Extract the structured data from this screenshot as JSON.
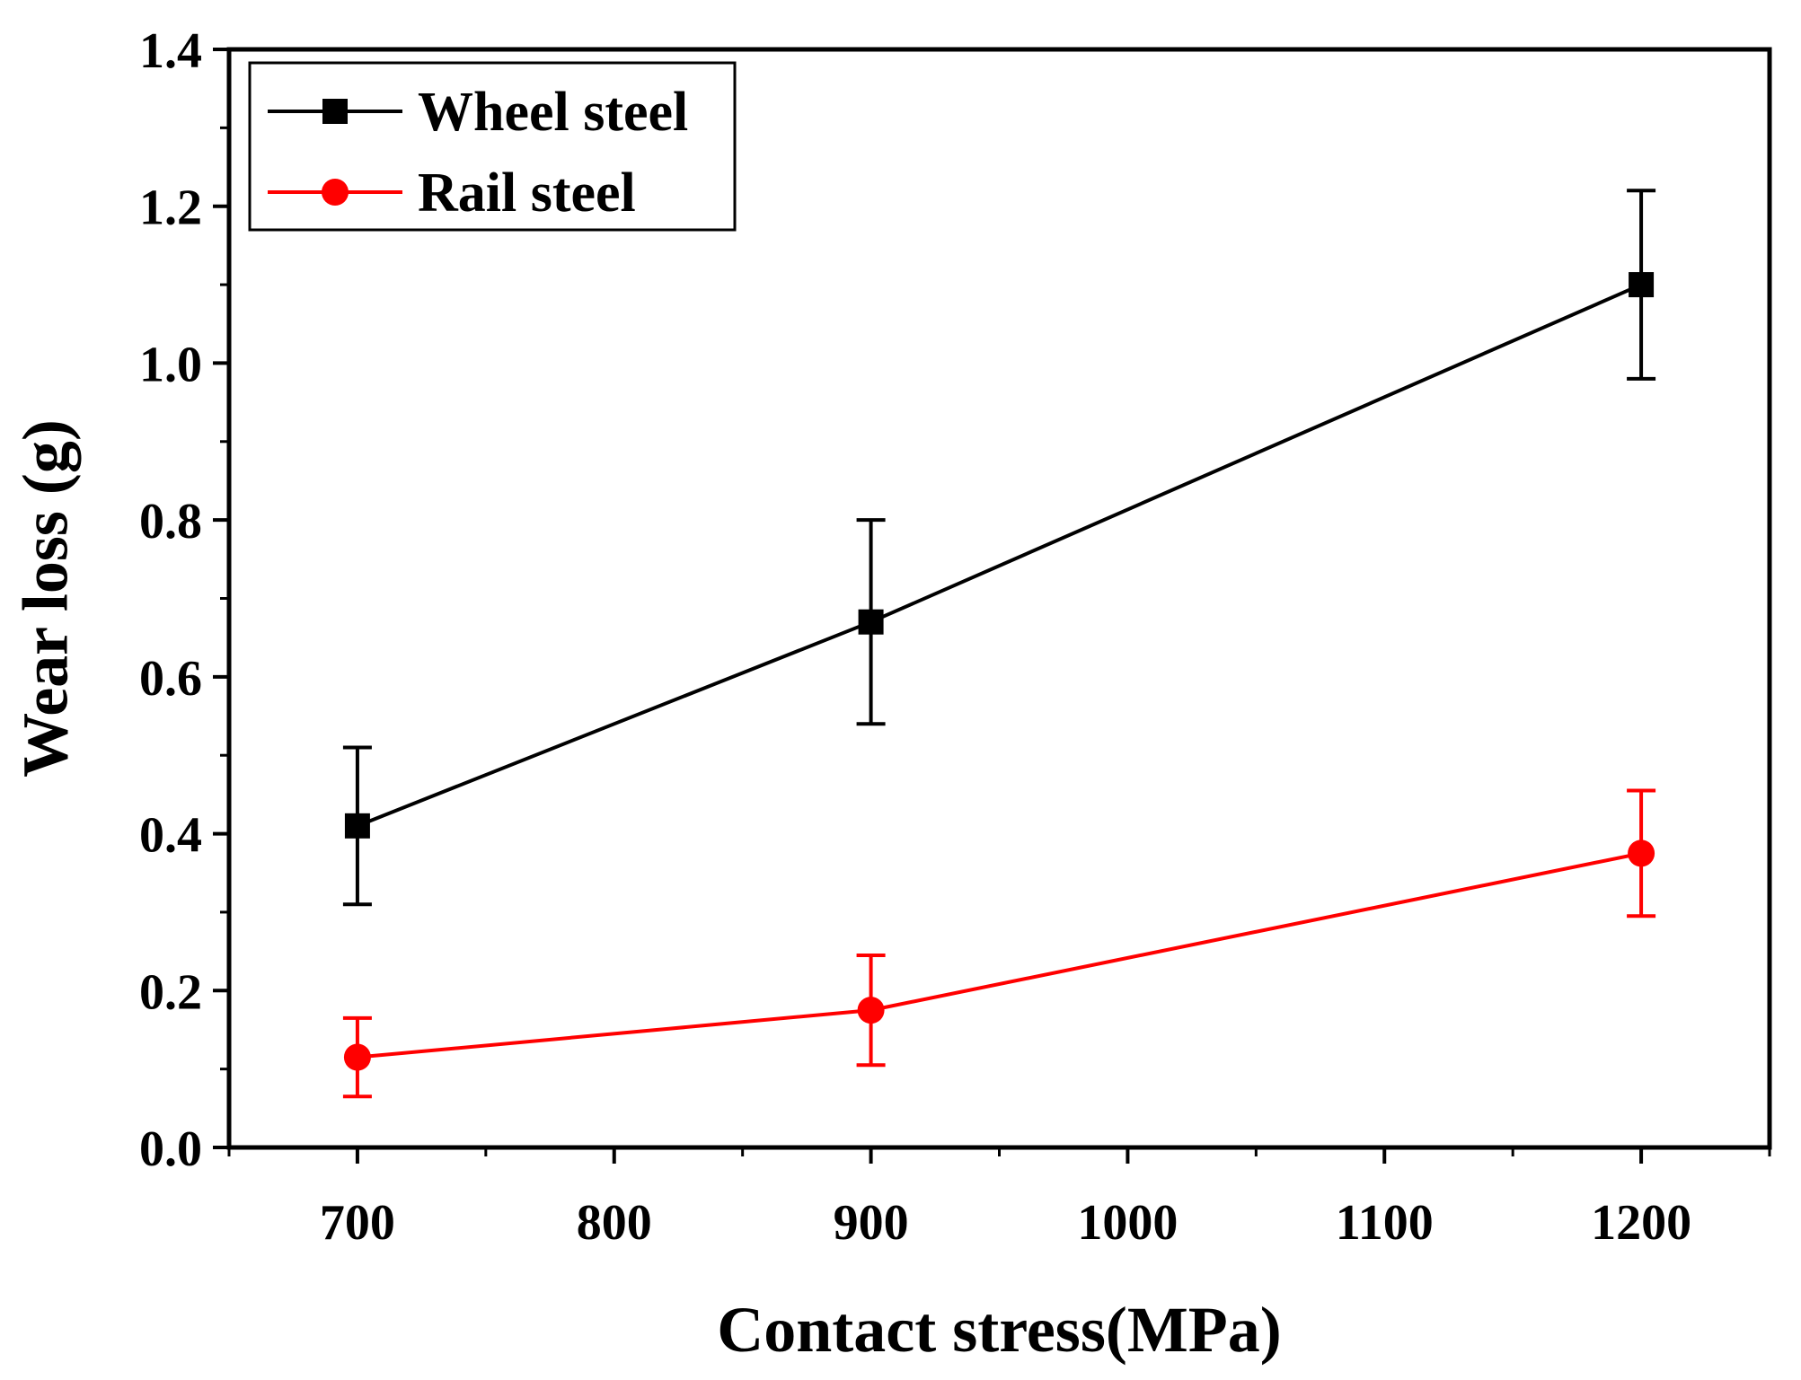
{
  "chart_data": {
    "type": "line",
    "title": "",
    "xlabel": "Contact stress(MPa)",
    "ylabel": "Wear loss (g)",
    "xlim": [
      650,
      1250
    ],
    "ylim": [
      0.0,
      1.4
    ],
    "x_ticks": [
      700,
      800,
      900,
      1000,
      1100,
      1200
    ],
    "x_tick_labels": [
      "700",
      "800",
      "900",
      "1000",
      "1100",
      "1200"
    ],
    "y_ticks": [
      0.0,
      0.2,
      0.4,
      0.6,
      0.8,
      1.0,
      1.2,
      1.4
    ],
    "y_tick_labels": [
      "0.0",
      "0.2",
      "0.4",
      "0.6",
      "0.8",
      "1.0",
      "1.2",
      "1.4"
    ],
    "grid": false,
    "legend_position": "top-left",
    "series": [
      {
        "name": "Wheel steel",
        "color": "#000000",
        "marker": "square",
        "x": [
          700,
          900,
          1200
        ],
        "y": [
          0.41,
          0.67,
          1.1
        ],
        "error": [
          0.1,
          0.13,
          0.12
        ]
      },
      {
        "name": "Rail steel",
        "color": "#ff0000",
        "marker": "circle",
        "x": [
          700,
          900,
          1200
        ],
        "y": [
          0.115,
          0.175,
          0.375
        ],
        "error": [
          0.05,
          0.07,
          0.08
        ]
      }
    ]
  }
}
